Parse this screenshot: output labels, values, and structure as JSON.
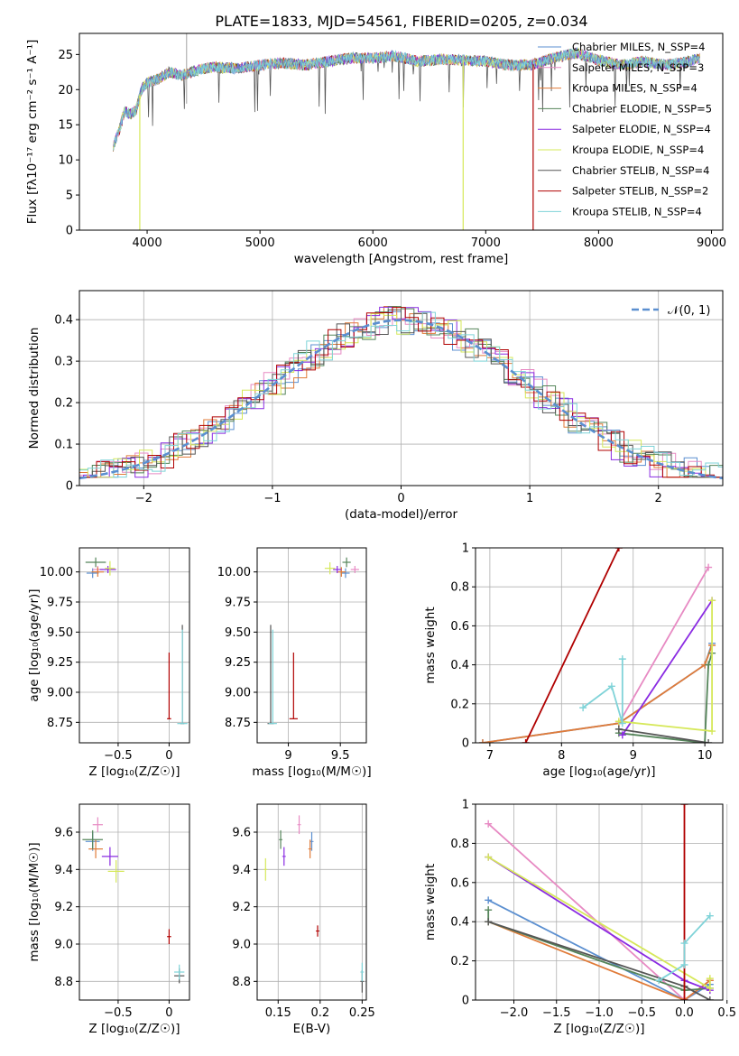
{
  "figure_title": "PLATE=1833, MJD=54561, FIBERID=0205, z=0.034",
  "colors": {
    "Chabrier MILES": "#5b8fd0",
    "Salpeter MILES": "#e78ac3",
    "Kroupa MILES": "#e07b39",
    "Chabrier ELODIE": "#55855a",
    "Salpeter ELODIE": "#8a2be2",
    "Kroupa ELODIE": "#d6e85a",
    "Chabrier STELIB": "#555555",
    "Salpeter STELIB": "#b00000",
    "Kroupa STELIB": "#7fd3d8",
    "gaussian": "#5b8fd0"
  },
  "chart_data": [
    {
      "id": "spectrum",
      "type": "line",
      "title": "PLATE=1833, MJD=54561, FIBERID=0205, z=0.034",
      "xlabel": "wavelength [Angstrom, rest frame]",
      "ylabel": "Flux [fλ10⁻¹⁷ erg cm⁻² s⁻¹ A⁻¹]",
      "xlim": [
        3400,
        9100
      ],
      "ylim": [
        0,
        28
      ],
      "xticks": [
        4000,
        5000,
        6000,
        7000,
        8000,
        9000
      ],
      "yticks": [
        0,
        5,
        10,
        15,
        20,
        25
      ],
      "grid": false,
      "legend_position": "top-right",
      "series": [
        {
          "name": "Chabrier MILES, N_SSP=4"
        },
        {
          "name": "Salpeter MILES, N_SSP=3"
        },
        {
          "name": "Kroupa MILES, N_SSP=4"
        },
        {
          "name": "Chabrier ELODIE, N_SSP=5"
        },
        {
          "name": "Salpeter ELODIE, N_SSP=4"
        },
        {
          "name": "Kroupa ELODIE, N_SSP=4"
        },
        {
          "name": "Chabrier STELIB, N_SSP=4"
        },
        {
          "name": "Salpeter STELIB, N_SSP=2"
        },
        {
          "name": "Kroupa STELIB, N_SSP=4"
        }
      ],
      "continuum": {
        "x": [
          3700,
          3750,
          3800,
          3850,
          3900,
          3950,
          4000,
          4100,
          4200,
          4300,
          4400,
          4500,
          4600,
          4800,
          5000,
          5200,
          5400,
          5600,
          5800,
          6000,
          6200,
          6400,
          6600,
          6800,
          7000,
          7200,
          7400,
          7600,
          7800,
          8000,
          8200,
          8400,
          8600,
          8800,
          8900
        ],
        "y": [
          12,
          14,
          17,
          16.5,
          17,
          20,
          21,
          21.5,
          22.5,
          22,
          22.5,
          23,
          23.2,
          23,
          23.5,
          23.8,
          23.5,
          24,
          24.5,
          24.5,
          24.8,
          24,
          24.3,
          24.2,
          24,
          23.5,
          23.5,
          24.5,
          25.2,
          24.2,
          23.5,
          24,
          23.5,
          24,
          24.5
        ]
      },
      "drops": [
        {
          "x": 3935,
          "y": 0
        },
        {
          "x": 6800,
          "y": 0
        },
        {
          "x": 7420,
          "y": 0
        }
      ]
    },
    {
      "id": "residuals",
      "type": "line",
      "xlabel": "(data-model)/error",
      "ylabel": "Normed distribution",
      "xlim": [
        -2.5,
        2.5
      ],
      "ylim": [
        0,
        0.47
      ],
      "xticks": [
        -2,
        -1,
        0,
        1,
        2
      ],
      "yticks": [
        0.0,
        0.1,
        0.2,
        0.3,
        0.4
      ],
      "grid": true,
      "legend": "𝒩(0, 1)",
      "legend_position": "top-right",
      "bin_width": 0.1,
      "gaussian": {
        "mean": 0,
        "sigma": 1
      }
    },
    {
      "id": "age_vs_Z",
      "type": "scatter",
      "xlabel": "Z [log₁₀(Z/Z☉)]",
      "ylabel": "age  [log₁₀(age/yr)]",
      "xlim": [
        -0.88,
        0.2
      ],
      "ylim": [
        8.58,
        10.2
      ],
      "xticks": [
        -0.5,
        0.0
      ],
      "yticks": [
        8.75,
        9.0,
        9.25,
        9.5,
        9.75,
        10.0
      ],
      "ytick_format": "0.00",
      "grid": true,
      "points": [
        {
          "model": "Chabrier MILES",
          "x": -0.75,
          "y": 9.99,
          "xerr": 0.06,
          "yerr": 0.04
        },
        {
          "model": "Salpeter MILES",
          "x": -0.7,
          "y": 10.02,
          "xerr": 0.05,
          "yerr": 0.03
        },
        {
          "model": "Kroupa MILES",
          "x": -0.7,
          "y": 10.0,
          "xerr": 0.06,
          "yerr": 0.04
        },
        {
          "model": "Chabrier ELODIE",
          "x": -0.72,
          "y": 10.08,
          "xerr": 0.1,
          "yerr": 0.04
        },
        {
          "model": "Salpeter ELODIE",
          "x": -0.6,
          "y": 10.02,
          "xerr": 0.08,
          "yerr": 0.03
        },
        {
          "model": "Kroupa ELODIE",
          "x": -0.58,
          "y": 10.03,
          "xerr": 0.05,
          "yerr": 0.06
        },
        {
          "model": "Chabrier STELIB",
          "x": 0.13,
          "y": 8.74,
          "xerr": 0.02,
          "yerr": 0.0,
          "err_up": 0.82
        },
        {
          "model": "Salpeter STELIB",
          "x": 0.0,
          "y": 8.78,
          "xerr": 0.02,
          "yerr": 0.0,
          "err_up": 0.55
        },
        {
          "model": "Kroupa STELIB",
          "x": 0.13,
          "y": 8.74,
          "xerr": 0.05,
          "yerr": 0.0,
          "err_up": 0.78
        }
      ]
    },
    {
      "id": "age_vs_mass",
      "type": "scatter",
      "xlabel": "mass [log₁₀(M/M☉)]",
      "ylabel": "",
      "xlim": [
        8.7,
        9.75
      ],
      "ylim": [
        8.58,
        10.2
      ],
      "xticks": [
        9.0,
        9.5
      ],
      "yticks": [
        8.75,
        9.0,
        9.25,
        9.5,
        9.75,
        10.0
      ],
      "ytick_format": "0.00",
      "grid": true,
      "points": [
        {
          "model": "Chabrier MILES",
          "x": 9.55,
          "y": 9.99,
          "xerr": 0.04,
          "yerr": 0.04
        },
        {
          "model": "Salpeter MILES",
          "x": 9.64,
          "y": 10.02,
          "xerr": 0.04,
          "yerr": 0.03
        },
        {
          "model": "Kroupa MILES",
          "x": 9.51,
          "y": 10.0,
          "xerr": 0.04,
          "yerr": 0.04
        },
        {
          "model": "Chabrier ELODIE",
          "x": 9.56,
          "y": 10.08,
          "xerr": 0.04,
          "yerr": 0.04
        },
        {
          "model": "Salpeter ELODIE",
          "x": 9.47,
          "y": 10.02,
          "xerr": 0.04,
          "yerr": 0.03
        },
        {
          "model": "Kroupa ELODIE",
          "x": 9.4,
          "y": 10.03,
          "xerr": 0.05,
          "yerr": 0.05
        },
        {
          "model": "Chabrier STELIB",
          "x": 8.83,
          "y": 8.74,
          "xerr": 0.03,
          "yerr": 0.0,
          "err_up": 0.82
        },
        {
          "model": "Salpeter STELIB",
          "x": 9.05,
          "y": 8.78,
          "xerr": 0.04,
          "yerr": 0.0,
          "err_up": 0.55
        },
        {
          "model": "Kroupa STELIB",
          "x": 8.85,
          "y": 8.74,
          "xerr": 0.04,
          "yerr": 0.0,
          "err_up": 0.78
        }
      ]
    },
    {
      "id": "weight_vs_age",
      "type": "line",
      "xlabel": "age  [log₁₀(age/yr)]",
      "ylabel": "mass weight",
      "xlim": [
        6.8,
        10.25
      ],
      "ylim": [
        0,
        1.0
      ],
      "xticks": [
        7,
        8,
        9,
        10
      ],
      "yticks": [
        0.0,
        0.2,
        0.4,
        0.6,
        0.8,
        1.0
      ],
      "grid": true,
      "series": [
        {
          "model": "Chabrier MILES",
          "x": [
            6.9,
            8.8,
            10.0,
            10.1
          ],
          "y": [
            0.0,
            0.1,
            0.4,
            0.51
          ]
        },
        {
          "model": "Salpeter MILES",
          "x": [
            8.8,
            10.05
          ],
          "y": [
            0.1,
            0.9
          ]
        },
        {
          "model": "Kroupa MILES",
          "x": [
            6.9,
            8.8,
            10.0,
            10.1
          ],
          "y": [
            0.0,
            0.1,
            0.4,
            0.5
          ]
        },
        {
          "model": "Chabrier ELODIE",
          "x": [
            8.8,
            10.0,
            10.05,
            10.1
          ],
          "y": [
            0.05,
            0.0,
            0.4,
            0.46
          ]
        },
        {
          "model": "Salpeter ELODIE",
          "x": [
            8.85,
            10.1
          ],
          "y": [
            0.04,
            0.73
          ]
        },
        {
          "model": "Kroupa ELODIE",
          "x": [
            8.8,
            10.1,
            10.1
          ],
          "y": [
            0.11,
            0.06,
            0.73
          ]
        },
        {
          "model": "Chabrier STELIB",
          "x": [
            8.8,
            10.05
          ],
          "y": [
            0.07,
            0.0
          ]
        },
        {
          "model": "Salpeter STELIB",
          "x": [
            7.5,
            8.8
          ],
          "y": [
            0.0,
            1.0
          ]
        },
        {
          "model": "Kroupa STELIB",
          "x": [
            8.3,
            8.7,
            8.85,
            8.85
          ],
          "y": [
            0.18,
            0.29,
            0.1,
            0.43
          ]
        }
      ]
    },
    {
      "id": "mass_vs_Z",
      "type": "scatter",
      "xlabel": "Z [log₁₀(Z/Z☉)]",
      "ylabel": "mass [log₁₀(M/M☉)]",
      "xlim": [
        -0.88,
        0.2
      ],
      "ylim": [
        8.7,
        9.75
      ],
      "xticks": [
        -0.5,
        0.0
      ],
      "yticks": [
        8.8,
        9.0,
        9.2,
        9.4,
        9.6
      ],
      "ytick_format": "0.0",
      "grid": true,
      "points": [
        {
          "model": "Chabrier MILES",
          "x": -0.75,
          "y": 9.55,
          "xerr": 0.07,
          "yerr": 0.05
        },
        {
          "model": "Salpeter MILES",
          "x": -0.7,
          "y": 9.64,
          "xerr": 0.05,
          "yerr": 0.04
        },
        {
          "model": "Kroupa MILES",
          "x": -0.72,
          "y": 9.51,
          "xerr": 0.07,
          "yerr": 0.05
        },
        {
          "model": "Chabrier ELODIE",
          "x": -0.75,
          "y": 9.56,
          "xerr": 0.1,
          "yerr": 0.05
        },
        {
          "model": "Salpeter ELODIE",
          "x": -0.58,
          "y": 9.47,
          "xerr": 0.08,
          "yerr": 0.05
        },
        {
          "model": "Kroupa ELODIE",
          "x": -0.52,
          "y": 9.39,
          "xerr": 0.08,
          "yerr": 0.06
        },
        {
          "model": "Chabrier STELIB",
          "x": 0.1,
          "y": 8.83,
          "xerr": 0.05,
          "yerr": 0.04
        },
        {
          "model": "Salpeter STELIB",
          "x": 0.0,
          "y": 9.04,
          "xerr": 0.02,
          "yerr": 0.04
        },
        {
          "model": "Kroupa STELIB",
          "x": 0.1,
          "y": 8.85,
          "xerr": 0.05,
          "yerr": 0.04
        }
      ]
    },
    {
      "id": "mass_vs_ebv",
      "type": "scatter",
      "xlabel": "E(B-V)",
      "ylabel": "",
      "xlim": [
        0.125,
        0.255
      ],
      "ylim": [
        8.7,
        9.75
      ],
      "xticks": [
        0.15,
        0.2,
        0.25
      ],
      "yticks": [
        8.8,
        9.0,
        9.2,
        9.4,
        9.6
      ],
      "ytick_format": "0.0",
      "grid": true,
      "points": [
        {
          "model": "Chabrier MILES",
          "x": 0.19,
          "y": 9.55,
          "xerr": 0.0,
          "yerr": 0.05
        },
        {
          "model": "Salpeter MILES",
          "x": 0.175,
          "y": 9.64,
          "xerr": 0.0,
          "yerr": 0.05
        },
        {
          "model": "Kroupa MILES",
          "x": 0.188,
          "y": 9.51,
          "xerr": 0.0,
          "yerr": 0.05
        },
        {
          "model": "Chabrier ELODIE",
          "x": 0.153,
          "y": 9.56,
          "xerr": 0.0,
          "yerr": 0.05
        },
        {
          "model": "Salpeter ELODIE",
          "x": 0.157,
          "y": 9.47,
          "xerr": 0.0,
          "yerr": 0.05
        },
        {
          "model": "Kroupa ELODIE",
          "x": 0.135,
          "y": 9.4,
          "xerr": 0.0,
          "yerr": 0.06
        },
        {
          "model": "Chabrier STELIB",
          "x": 0.25,
          "y": 8.8,
          "xerr": 0.0,
          "yerr": 0.06
        },
        {
          "model": "Salpeter STELIB",
          "x": 0.197,
          "y": 9.07,
          "xerr": 0.0,
          "yerr": 0.03
        },
        {
          "model": "Kroupa STELIB",
          "x": 0.25,
          "y": 8.85,
          "xerr": 0.0,
          "yerr": 0.05
        }
      ]
    },
    {
      "id": "weight_vs_Z",
      "type": "line",
      "xlabel": "Z [log₁₀(Z/Z☉)]",
      "ylabel": "mass weight",
      "xlim": [
        -2.45,
        0.45
      ],
      "ylim": [
        0,
        1.0
      ],
      "xticks": [
        -2.0,
        -1.5,
        -1.0,
        -0.5,
        0.0,
        0.5
      ],
      "xtick_format": "0.0",
      "yticks": [
        0.0,
        0.2,
        0.4,
        0.6,
        0.8,
        1.0
      ],
      "grid": true,
      "series": [
        {
          "model": "Chabrier MILES",
          "x": [
            -2.3,
            0.0,
            0.3
          ],
          "y": [
            0.51,
            0.0,
            0.08
          ]
        },
        {
          "model": "Salpeter MILES",
          "x": [
            -2.3,
            0.0,
            0.3
          ],
          "y": [
            0.9,
            0.0,
            0.1
          ]
        },
        {
          "model": "Kroupa MILES",
          "x": [
            -2.3,
            0.0,
            0.3
          ],
          "y": [
            0.4,
            0.0,
            0.1
          ]
        },
        {
          "model": "Chabrier ELODIE",
          "x": [
            -2.3,
            -2.3,
            0.0,
            0.3
          ],
          "y": [
            0.46,
            0.4,
            0.05,
            0.06
          ]
        },
        {
          "model": "Salpeter ELODIE",
          "x": [
            -2.3,
            0.0,
            0.3
          ],
          "y": [
            0.73,
            0.1,
            0.05
          ]
        },
        {
          "model": "Kroupa ELODIE",
          "x": [
            -2.3,
            0.3,
            0.3
          ],
          "y": [
            0.73,
            0.06,
            0.11
          ]
        },
        {
          "model": "Chabrier STELIB",
          "x": [
            -2.3,
            0.0,
            0.3
          ],
          "y": [
            0.4,
            0.07,
            0.0
          ]
        },
        {
          "model": "Salpeter STELIB",
          "x": [
            0.0,
            0.0
          ],
          "y": [
            0.0,
            1.0
          ]
        },
        {
          "model": "Kroupa STELIB",
          "x": [
            -0.3,
            0.0,
            0.0,
            0.3
          ],
          "y": [
            0.1,
            0.18,
            0.29,
            0.43
          ]
        }
      ]
    }
  ]
}
